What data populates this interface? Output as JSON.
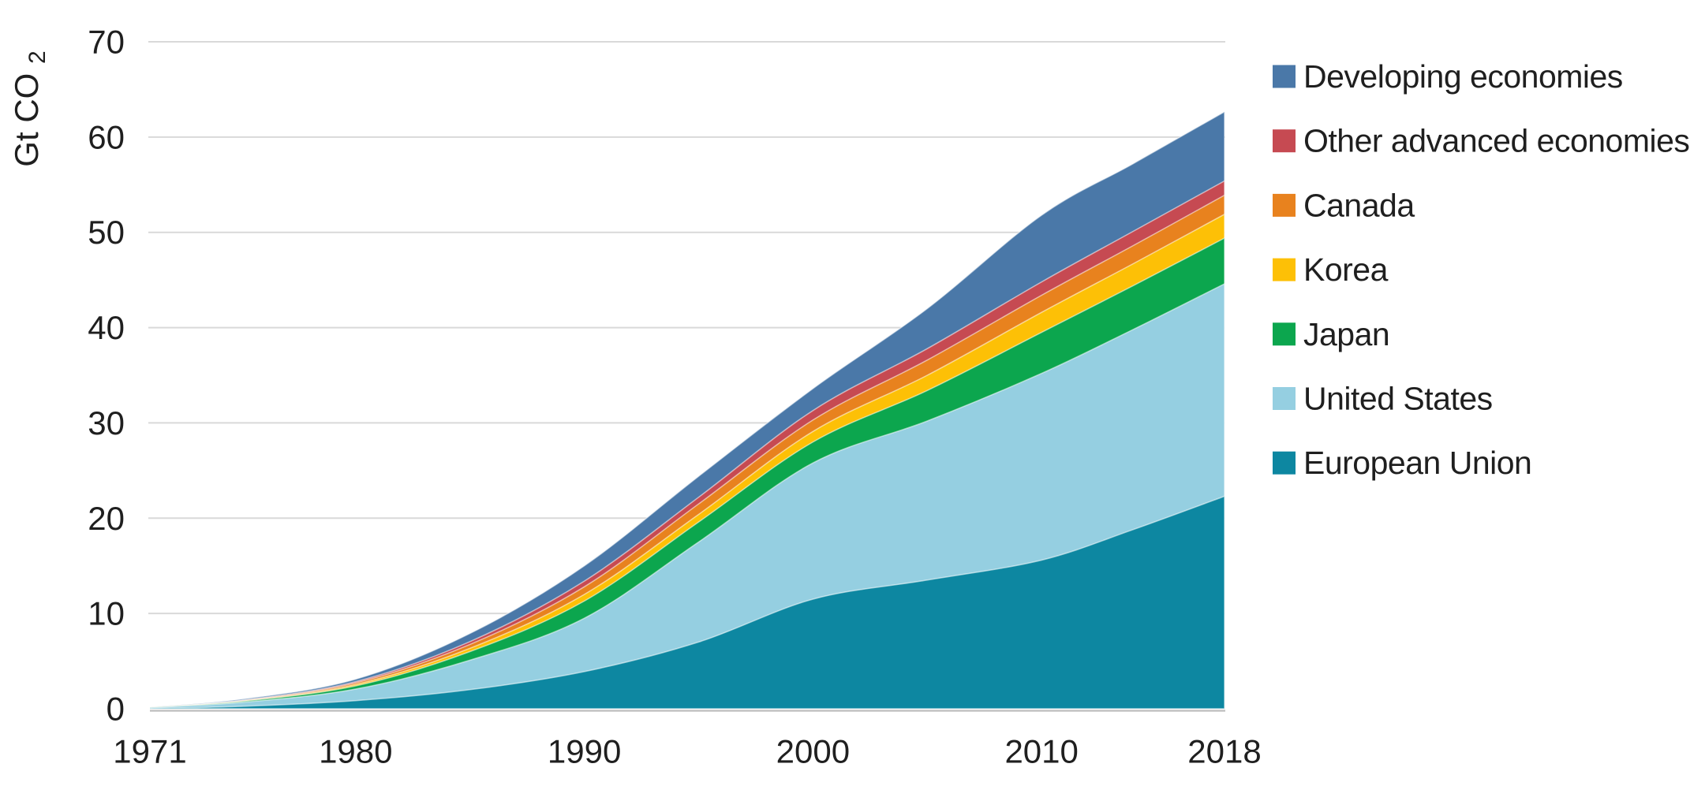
{
  "chart_data": {
    "type": "area",
    "stacked": true,
    "ylabel_main": "Gt CO",
    "ylabel_sub": "2",
    "xlabel": "",
    "xlim": [
      1971,
      2018
    ],
    "ylim": [
      0,
      70
    ],
    "grid": "horizontal",
    "x": [
      1971,
      1975,
      1980,
      1985,
      1990,
      1995,
      2000,
      2005,
      2010,
      2014,
      2018
    ],
    "x_ticks": [
      "1971",
      "1980",
      "1990",
      "2000",
      "2010",
      "2018"
    ],
    "y_ticks": [
      "0",
      "10",
      "20",
      "30",
      "40",
      "50",
      "60",
      "70"
    ],
    "series": [
      {
        "name": "European Union",
        "color": "#0D87A1",
        "values": [
          0.04,
          0.25,
          0.85,
          2.0,
          3.9,
          7.0,
          11.5,
          13.5,
          15.6,
          18.8,
          22.3
        ]
      },
      {
        "name": "United States",
        "color": "#95CFE1",
        "values": [
          0.08,
          0.42,
          1.22,
          3.1,
          5.6,
          10.5,
          14.3,
          16.7,
          19.6,
          21.0,
          22.3
        ]
      },
      {
        "name": "Japan",
        "color": "#0CA64E",
        "values": [
          0.02,
          0.1,
          0.33,
          0.9,
          1.8,
          2.1,
          2.2,
          3.2,
          4.3,
          4.6,
          4.8
        ]
      },
      {
        "name": "Korea",
        "color": "#FDC006",
        "values": [
          0.01,
          0.03,
          0.15,
          0.35,
          0.7,
          0.8,
          1.1,
          1.6,
          2.1,
          2.3,
          2.5
        ]
      },
      {
        "name": "Canada",
        "color": "#E8821E",
        "values": [
          0.01,
          0.05,
          0.17,
          0.4,
          0.8,
          1.1,
          1.2,
          1.6,
          1.8,
          1.9,
          2.0
        ]
      },
      {
        "name": "Other advanced economies",
        "color": "#C64A52",
        "values": [
          0.01,
          0.03,
          0.13,
          0.3,
          0.6,
          0.7,
          1.0,
          1.2,
          1.4,
          1.5,
          1.5
        ]
      },
      {
        "name": "Developing economies",
        "color": "#4A78A8",
        "values": [
          0.03,
          0.12,
          0.25,
          0.85,
          1.6,
          2.2,
          2.3,
          4.2,
          7.0,
          7.1,
          7.25
        ]
      }
    ],
    "legend": {
      "position": "right",
      "items": [
        {
          "label": "Developing economies",
          "color": "#4A78A8"
        },
        {
          "label": "Other advanced economies",
          "color": "#C64A52"
        },
        {
          "label": "Canada",
          "color": "#E8821E"
        },
        {
          "label": "Korea",
          "color": "#FDC006"
        },
        {
          "label": "Japan",
          "color": "#0CA64E"
        },
        {
          "label": "United States",
          "color": "#95CFE1"
        },
        {
          "label": "European Union",
          "color": "#0D87A1"
        }
      ]
    },
    "colors": {
      "grid": "#D9D9D9",
      "baseline": "#C2C2C2",
      "axis_text": "#1F1F1F",
      "background": "#FFFFFF"
    }
  }
}
